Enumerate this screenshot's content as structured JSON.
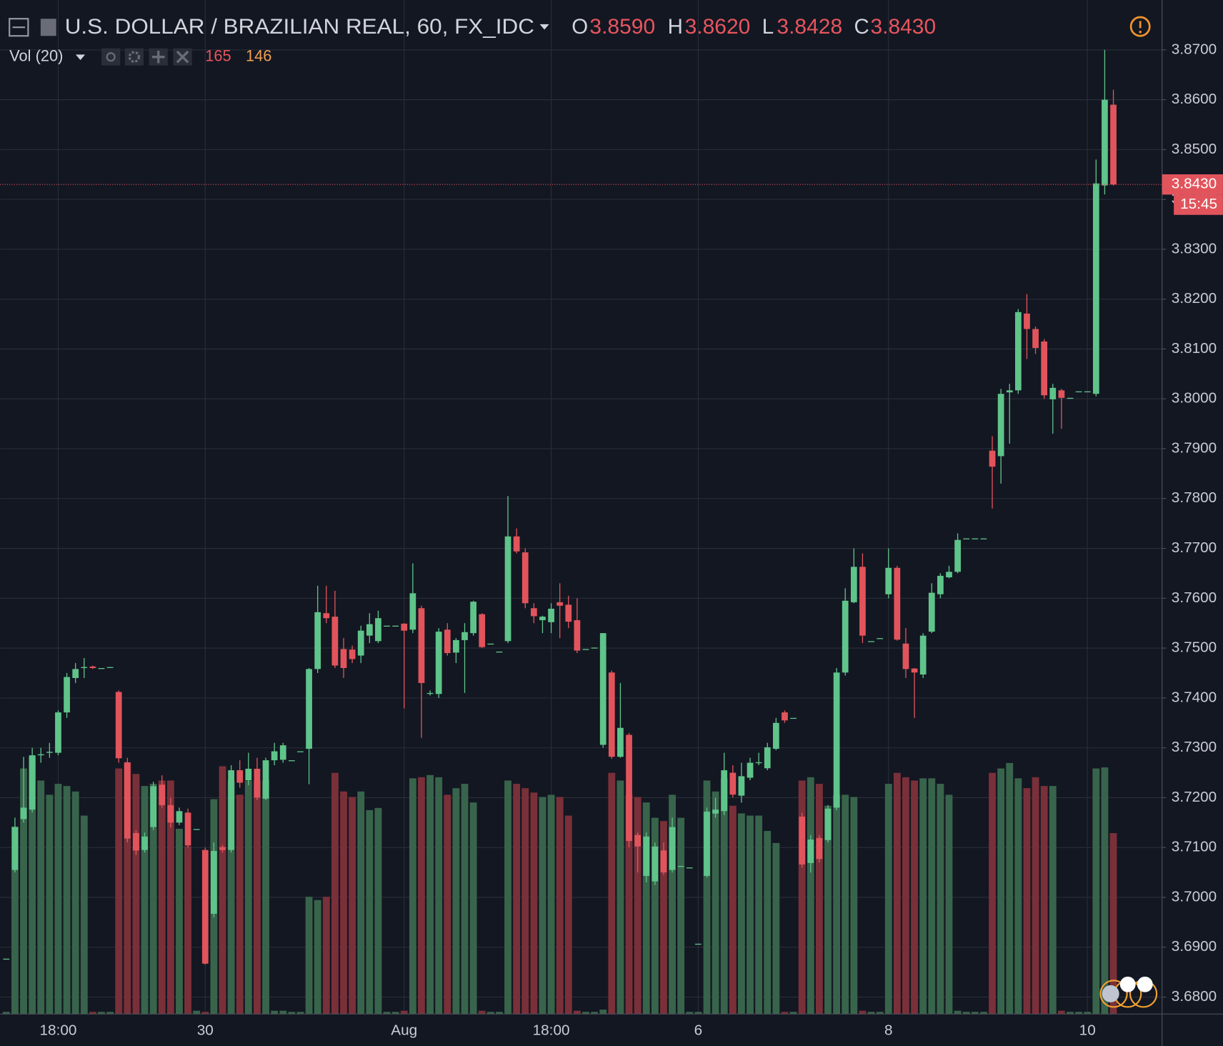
{
  "header": {
    "title": "U.S. DOLLAR / BRAZILIAN REAL, 60, FX_IDC",
    "ohlc": [
      {
        "key": "O",
        "value": "3.8590"
      },
      {
        "key": "H",
        "value": "3.8620"
      },
      {
        "key": "L",
        "value": "3.8428"
      },
      {
        "key": "C",
        "value": "3.8430"
      }
    ],
    "volume_title": "Vol (20)",
    "volume": "165",
    "volume_ma": "146"
  },
  "chart_data": {
    "type": "candlestick",
    "categories": [
      null,
      null,
      null,
      null,
      null,
      null,
      "18:00",
      null,
      null,
      null,
      null,
      null,
      null,
      null,
      null,
      null,
      null,
      null,
      null,
      null,
      null,
      null,
      null,
      "30",
      null,
      null,
      null,
      null,
      null,
      null,
      null,
      null,
      null,
      null,
      null,
      null,
      null,
      null,
      null,
      null,
      null,
      null,
      null,
      null,
      null,
      null,
      "Aug",
      null,
      null,
      null,
      null,
      null,
      null,
      null,
      null,
      null,
      null,
      null,
      null,
      null,
      null,
      null,
      null,
      "18:00",
      null,
      null,
      null,
      null,
      null,
      null,
      null,
      null,
      null,
      null,
      null,
      null,
      null,
      null,
      null,
      null,
      "6",
      null,
      null,
      null,
      null,
      null,
      null,
      null,
      null,
      null,
      null,
      null,
      null,
      null,
      null,
      null,
      null,
      null,
      null,
      null,
      null,
      null,
      "8",
      null,
      null,
      null,
      null,
      null,
      null,
      null,
      null,
      null,
      null,
      null,
      null,
      null,
      null,
      null,
      null,
      null,
      null,
      null,
      null,
      null,
      null,
      "10",
      null,
      null,
      null
    ],
    "open": [
      3.6877,
      3.7055,
      3.7157,
      3.7176,
      3.7285,
      3.729,
      3.729,
      3.7371,
      3.744,
      3.746,
      3.7463,
      3.746,
      3.7462,
      3.7412,
      3.7271,
      3.7129,
      3.7095,
      3.7141,
      3.7226,
      3.7185,
      3.715,
      3.717,
      3.7137,
      3.7095,
      3.6967,
      3.7101,
      3.7095,
      3.7255,
      3.7235,
      3.7258,
      3.7198,
      3.7275,
      3.7276,
      3.7275,
      3.7293,
      3.7298,
      3.7458,
      3.757,
      3.7563,
      3.7498,
      3.7497,
      3.7485,
      3.7525,
      3.7514,
      3.7545,
      3.7545,
      3.7549,
      3.7537,
      3.758,
      3.741,
      3.7408,
      3.7537,
      3.7491,
      3.7516,
      3.753,
      3.7568,
      3.7509,
      3.7493,
      3.7514,
      3.7724,
      3.7692,
      3.758,
      3.7556,
      3.7552,
      3.7592,
      3.7587,
      3.7556,
      3.7498,
      3.7501,
      3.7306,
      3.7451,
      3.7282,
      3.7326,
      3.7125,
      3.7043,
      3.7032,
      3.7094,
      3.7055,
      3.7063,
      3.706,
      3.6907,
      3.7043,
      3.7168,
      3.7173,
      3.725,
      3.7204,
      3.724,
      3.727,
      3.7259,
      3.7298,
      3.7371,
      3.736,
      3.7162,
      3.7069,
      3.7119,
      3.7115,
      3.718,
      3.7451,
      3.7592,
      3.7663,
      3.7514,
      3.752,
      3.7608,
      3.7661,
      3.7509,
      3.7459,
      3.7447,
      3.7533,
      3.7608,
      3.7642,
      3.7653,
      3.772,
      3.772,
      3.772,
      3.7896,
      3.7885,
      3.8013,
      3.8017,
      3.8171,
      3.814,
      3.8115,
      3.7999,
      3.8017,
      3.8002,
      3.8015,
      3.8015,
      3.801,
      3.8428,
      3.859
    ],
    "high": [
      3.6877,
      3.716,
      3.7282,
      3.73,
      3.73,
      3.731,
      3.7375,
      3.745,
      3.747,
      3.748,
      3.7465,
      3.746,
      3.7462,
      3.7415,
      3.728,
      3.7135,
      3.713,
      3.7232,
      3.7245,
      3.72,
      3.718,
      3.7178,
      3.7137,
      3.71,
      3.711,
      3.7105,
      3.7265,
      3.7275,
      3.729,
      3.728,
      3.728,
      3.731,
      3.731,
      3.7275,
      3.7293,
      3.746,
      3.7625,
      3.7625,
      3.7615,
      3.752,
      3.7505,
      3.7545,
      3.757,
      3.7575,
      3.7545,
      3.7545,
      3.755,
      3.767,
      3.7585,
      3.7415,
      3.754,
      3.755,
      3.752,
      3.755,
      3.7595,
      3.757,
      3.7509,
      3.7493,
      3.7805,
      3.774,
      3.77,
      3.759,
      3.7565,
      3.759,
      3.763,
      3.7605,
      3.76,
      3.7498,
      3.7501,
      3.753,
      3.7455,
      3.743,
      3.733,
      3.713,
      3.713,
      3.711,
      3.711,
      3.716,
      3.7063,
      3.706,
      3.6907,
      3.718,
      3.72,
      3.729,
      3.7265,
      3.727,
      3.728,
      3.729,
      3.731,
      3.736,
      3.7375,
      3.736,
      3.717,
      3.7125,
      3.7125,
      3.7185,
      3.746,
      3.762,
      3.77,
      3.769,
      3.7514,
      3.752,
      3.77,
      3.7665,
      3.754,
      3.746,
      3.753,
      3.763,
      3.765,
      3.7665,
      3.773,
      3.772,
      3.772,
      3.772,
      3.7925,
      3.802,
      3.803,
      3.818,
      3.821,
      3.8145,
      3.812,
      3.803,
      3.802,
      3.8002,
      3.8015,
      3.8015,
      3.848,
      3.87,
      3.862
    ],
    "low": [
      3.6877,
      3.705,
      3.715,
      3.717,
      3.727,
      3.728,
      3.7285,
      3.736,
      3.743,
      3.744,
      3.7458,
      3.746,
      3.7462,
      3.727,
      3.711,
      3.7085,
      3.709,
      3.7135,
      3.718,
      3.714,
      3.7145,
      3.71,
      3.7137,
      3.6865,
      3.696,
      3.709,
      3.709,
      3.722,
      3.7225,
      3.7195,
      3.7195,
      3.7265,
      3.727,
      3.7275,
      3.7293,
      3.7227,
      3.745,
      3.755,
      3.746,
      3.744,
      3.747,
      3.747,
      3.751,
      3.751,
      3.7545,
      3.7545,
      3.7379,
      3.753,
      3.732,
      3.7405,
      3.74,
      3.7485,
      3.747,
      3.741,
      3.7525,
      3.75,
      3.7509,
      3.7493,
      3.751,
      3.769,
      3.758,
      3.755,
      3.753,
      3.753,
      3.752,
      3.754,
      3.749,
      3.7498,
      3.7501,
      3.73,
      3.7278,
      3.728,
      3.71,
      3.705,
      3.703,
      3.7025,
      3.7045,
      3.705,
      3.7063,
      3.706,
      3.6907,
      3.704,
      3.716,
      3.7165,
      3.72,
      3.719,
      3.7235,
      3.7265,
      3.7255,
      3.7295,
      3.735,
      3.736,
      3.706,
      3.705,
      3.707,
      3.711,
      3.7175,
      3.7445,
      3.759,
      3.751,
      3.7514,
      3.752,
      3.76,
      3.7515,
      3.744,
      3.736,
      3.744,
      3.753,
      3.76,
      3.764,
      3.765,
      3.772,
      3.772,
      3.772,
      3.778,
      3.783,
      3.791,
      3.801,
      3.808,
      3.809,
      3.8,
      3.793,
      3.794,
      3.8002,
      3.8015,
      3.8015,
      3.8005,
      3.841,
      3.8428
    ],
    "close": [
      3.6877,
      3.7141,
      3.718,
      3.7285,
      3.7287,
      3.7292,
      3.7371,
      3.7442,
      3.7458,
      3.7462,
      3.746,
      3.746,
      3.7462,
      3.7279,
      3.7118,
      3.7094,
      3.7122,
      3.7223,
      3.7185,
      3.715,
      3.7173,
      3.7104,
      3.7137,
      3.6867,
      3.7093,
      3.7095,
      3.7255,
      3.723,
      3.7258,
      3.72,
      3.7275,
      3.7293,
      3.7305,
      3.7275,
      3.7293,
      3.7458,
      3.7572,
      3.756,
      3.7465,
      3.746,
      3.7478,
      3.7535,
      3.7548,
      3.756,
      3.7545,
      3.7545,
      3.7535,
      3.761,
      3.743,
      3.741,
      3.7533,
      3.749,
      3.7516,
      3.7532,
      3.7593,
      3.7502,
      3.7509,
      3.7493,
      3.7724,
      3.7694,
      3.759,
      3.7564,
      3.7563,
      3.7579,
      3.7585,
      3.7553,
      3.7495,
      3.7498,
      3.7501,
      3.753,
      3.7282,
      3.734,
      3.7113,
      3.7102,
      3.7122,
      3.7102,
      3.705,
      3.7141,
      3.7063,
      3.706,
      3.6907,
      3.7172,
      3.7176,
      3.7255,
      3.7206,
      3.7243,
      3.727,
      3.7271,
      3.7301,
      3.735,
      3.7355,
      3.736,
      3.7066,
      3.7116,
      3.7077,
      3.7178,
      3.7451,
      3.7595,
      3.7663,
      3.7525,
      3.7514,
      3.752,
      3.7661,
      3.7517,
      3.7458,
      3.7451,
      3.7525,
      3.7611,
      3.7645,
      3.7653,
      3.7717,
      3.772,
      3.772,
      3.772,
      3.7864,
      3.801,
      3.8017,
      3.8174,
      3.814,
      3.8102,
      3.8007,
      3.8022,
      3.8002,
      3.8002,
      3.8015,
      3.8015,
      3.8432,
      3.86,
      3.843
    ],
    "volume": [
      2,
      171,
      224,
      235,
      213,
      200,
      210,
      208,
      203,
      181,
      2,
      2,
      2,
      224,
      229,
      219,
      208,
      210,
      213,
      213,
      169,
      153,
      3,
      2,
      196,
      226,
      213,
      200,
      213,
      213,
      213,
      3,
      3,
      2,
      2,
      107,
      104,
      107,
      220,
      203,
      198,
      203,
      186,
      188,
      2,
      2,
      3,
      215,
      216,
      218,
      216,
      200,
      206,
      210,
      193,
      3,
      2,
      2,
      213,
      210,
      206,
      202,
      198,
      200,
      198,
      181,
      3,
      2,
      2,
      4,
      220,
      213,
      200,
      198,
      193,
      179,
      176,
      200,
      179,
      2,
      2,
      213,
      203,
      215,
      190,
      183,
      181,
      181,
      167,
      156,
      2,
      2,
      213,
      216,
      210,
      190,
      200,
      200,
      198,
      3,
      2,
      2,
      210,
      220,
      216,
      213,
      215,
      215,
      210,
      200,
      3,
      2,
      2,
      2,
      220,
      224,
      229,
      215,
      206,
      216,
      208,
      208,
      3,
      2,
      2,
      2,
      224,
      225,
      165
    ],
    "up_color": "#5fc48a",
    "down_color": "#e2545c",
    "volume_up_color": "#38644b",
    "volume_down_color": "#7a3039",
    "ylim": [
      3.6766,
      3.88
    ],
    "volume_lim": [
      0,
      925
    ],
    "grid": true,
    "yticks": [
      {
        "value": 3.87,
        "label": "3.8700"
      },
      {
        "value": 3.86,
        "label": "3.8600"
      },
      {
        "value": 3.85,
        "label": "3.8500"
      },
      {
        "value": 3.84,
        "label": "3.8400"
      },
      {
        "value": 3.83,
        "label": "3.8300"
      },
      {
        "value": 3.82,
        "label": "3.8200"
      },
      {
        "value": 3.81,
        "label": "3.8100"
      },
      {
        "value": 3.8,
        "label": "3.8000"
      },
      {
        "value": 3.79,
        "label": "3.7900"
      },
      {
        "value": 3.78,
        "label": "3.7800"
      },
      {
        "value": 3.77,
        "label": "3.7700"
      },
      {
        "value": 3.76,
        "label": "3.7600"
      },
      {
        "value": 3.75,
        "label": "3.7500"
      },
      {
        "value": 3.74,
        "label": "3.7400"
      },
      {
        "value": 3.73,
        "label": "3.7300"
      },
      {
        "value": 3.72,
        "label": "3.7200"
      },
      {
        "value": 3.71,
        "label": "3.7100"
      },
      {
        "value": 3.7,
        "label": "3.7000"
      },
      {
        "value": 3.69,
        "label": "3.6900"
      },
      {
        "value": 3.68,
        "label": "3.6800"
      }
    ],
    "last_price_label": "3.8430",
    "countdown": "15:45"
  }
}
